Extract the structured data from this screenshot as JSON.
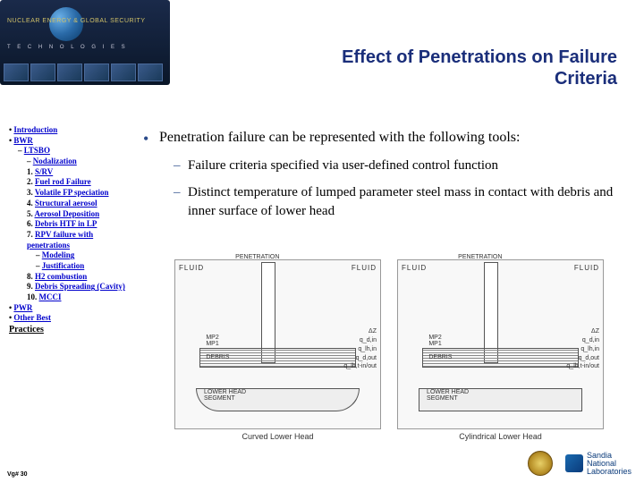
{
  "banner": {
    "top_text": "NUCLEAR ENERGY & GLOBAL SECURITY",
    "sub_text": "T E C H N O L O G I E S"
  },
  "title": "Effect of Penetrations on Failure Criteria",
  "sidebar": {
    "items": [
      {
        "level": 1,
        "prefix": "• ",
        "text": "Introduction",
        "link": true
      },
      {
        "level": 1,
        "prefix": "• ",
        "text": "BWR",
        "link": true
      },
      {
        "level": 2,
        "prefix": "– ",
        "text": "LTSBO",
        "link": true
      },
      {
        "level": 3,
        "prefix": "– ",
        "text": "Nodalization",
        "link": true
      },
      {
        "level": 3,
        "prefix": "1. ",
        "text": "S/RV",
        "link": true
      },
      {
        "level": 3,
        "prefix": "2. ",
        "text": "Fuel rod Failure",
        "link": true
      },
      {
        "level": 3,
        "prefix": "3. ",
        "text": "Volatile FP speciation",
        "link": true
      },
      {
        "level": 3,
        "prefix": "4. ",
        "text": "Structural aerosol",
        "link": true
      },
      {
        "level": 3,
        "prefix": "5. ",
        "text": "Aerosol Deposition",
        "link": true
      },
      {
        "level": 3,
        "prefix": "6. ",
        "text": "Debris HTF in LP",
        "link": true
      },
      {
        "level": 3,
        "prefix": "7. ",
        "text": "RPV failure with penetrations",
        "link": true
      },
      {
        "level": 4,
        "prefix": "– ",
        "text": "Modeling",
        "link": true
      },
      {
        "level": 4,
        "prefix": "– ",
        "text": "Justification",
        "link": true
      },
      {
        "level": 3,
        "prefix": "8. ",
        "text": "H2 combustion",
        "link": true
      },
      {
        "level": 3,
        "prefix": "9. ",
        "text": "Debris Spreading (Cavity)",
        "link": true
      },
      {
        "level": 3,
        "prefix": "10. ",
        "text": "MCCI",
        "link": true
      },
      {
        "level": 1,
        "prefix": "• ",
        "text": "PWR",
        "link": true
      },
      {
        "level": 1,
        "prefix": "• ",
        "text": "Other Best",
        "link": true
      }
    ],
    "practices": "Practices"
  },
  "content": {
    "main": "Penetration failure can be represented with the following tools:",
    "sub1": "Failure criteria specified via user-defined control function",
    "sub2": "Distinct temperature of lumped parameter steel mass in contact with debris and inner surface of lower head"
  },
  "figures": {
    "left_caption": "Curved Lower Head",
    "right_caption": "Cylindrical Lower Head",
    "fluid": "FLUID",
    "debris": "DEBRIS",
    "lowerhead": "LOWER HEAD\nSEGMENT",
    "mp1": "MP1",
    "mp2": "MP2",
    "q_labels": "ΔZ\nq_d,in\nq_lh,in\nq_d,out\nq_lh,t-in/out"
  },
  "footer": {
    "page": "Vg# 30",
    "lab": "Sandia\nNational\nLaboratories"
  }
}
